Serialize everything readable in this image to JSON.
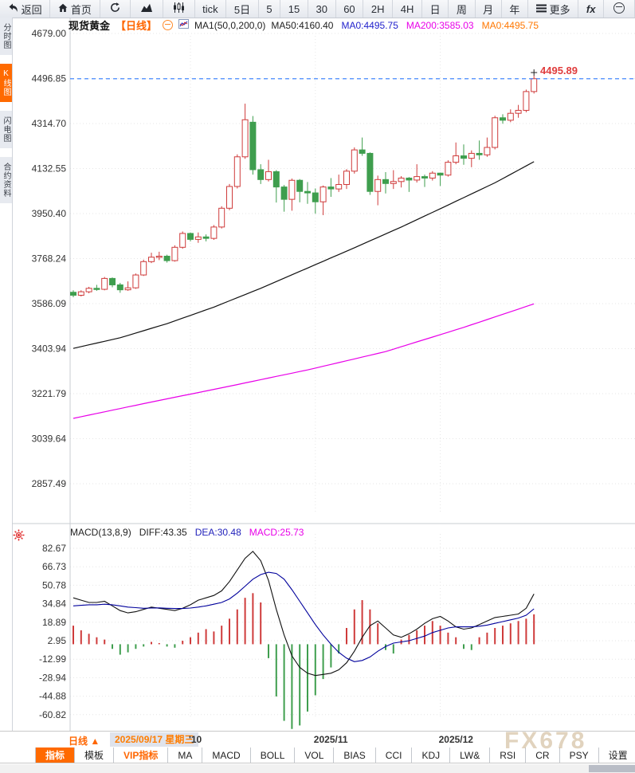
{
  "toolbar": {
    "buttons": [
      {
        "name": "back-button",
        "icon": "back",
        "label": "返回"
      },
      {
        "name": "home-button",
        "icon": "home",
        "label": "首页"
      },
      {
        "name": "refresh-button",
        "icon": "refresh"
      },
      {
        "name": "line-chart-button",
        "icon": "linechart"
      },
      {
        "name": "candlestick-button",
        "icon": "candles"
      },
      {
        "name": "interval-tick-button",
        "label": "tick"
      },
      {
        "name": "interval-5d-button",
        "label": "5日"
      },
      {
        "name": "interval-5-button",
        "label": "5"
      },
      {
        "name": "interval-15-button",
        "label": "15"
      },
      {
        "name": "interval-30-button",
        "label": "30"
      },
      {
        "name": "interval-60-button",
        "label": "60"
      },
      {
        "name": "interval-2h-button",
        "label": "2H"
      },
      {
        "name": "interval-4h-button",
        "label": "4H"
      },
      {
        "name": "interval-day-button",
        "label": "日"
      },
      {
        "name": "interval-week-button",
        "label": "周"
      },
      {
        "name": "interval-month-button",
        "label": "月"
      },
      {
        "name": "interval-year-button",
        "label": "年"
      },
      {
        "name": "more-button",
        "icon": "menu",
        "label": "更多"
      },
      {
        "name": "fx-button",
        "label": "fx",
        "fx": true
      },
      {
        "name": "zoom-out-button",
        "icon": "circleminus"
      }
    ]
  },
  "sidebar": {
    "items": [
      {
        "label": "分时图",
        "active": false
      },
      {
        "label": "K线图",
        "active": true
      },
      {
        "label": "闪电图",
        "active": false
      },
      {
        "label": "合约资料",
        "active": false
      }
    ]
  },
  "chart_header": {
    "symbol": "现货黄金",
    "period": "【日线】",
    "ma_settings": "MA1(50,0,200,0)",
    "ma_values": [
      {
        "label": "MA50:4160.40",
        "color": "#222222"
      },
      {
        "label": "MA0:4495.75",
        "color": "#2222cc"
      },
      {
        "label": "MA200:3585.03",
        "color": "#e800e8"
      },
      {
        "label": "MA0:4495.75",
        "color": "#ff7700"
      }
    ]
  },
  "price_axis": [
    "4679.00",
    "4496.85",
    "4314.70",
    "4132.55",
    "3950.40",
    "3768.24",
    "3586.09",
    "3403.94",
    "3221.79",
    "3039.64",
    "2857.49"
  ],
  "current_price_label": "4495.89",
  "macd_header": {
    "name": "MACD(13,8,9)",
    "diff": "DIFF:43.35",
    "dea": "DEA:30.48",
    "macd": "MACD:25.73"
  },
  "macd_axis": [
    "82.67",
    "66.73",
    "50.78",
    "34.84",
    "18.89",
    "2.95",
    "-12.99",
    "-28.94",
    "-44.88",
    "-60.82"
  ],
  "x_axis": {
    "period_label": "日线 ▲",
    "highlight_date": "2025/09/17 星期三"
  },
  "tabs": [
    {
      "label": "指标",
      "style": "active"
    },
    {
      "label": "模板",
      "style": ""
    },
    {
      "label": "VIP指标",
      "style": "vip"
    },
    {
      "label": "MA",
      "style": ""
    },
    {
      "label": "MACD",
      "style": ""
    },
    {
      "label": "BOLL",
      "style": ""
    },
    {
      "label": "VOL",
      "style": ""
    },
    {
      "label": "BIAS",
      "style": ""
    },
    {
      "label": "CCI",
      "style": ""
    },
    {
      "label": "KDJ",
      "style": ""
    },
    {
      "label": "LW&",
      "style": ""
    },
    {
      "label": "RSI",
      "style": ""
    },
    {
      "label": "CR",
      "style": ""
    },
    {
      "label": "PSY",
      "style": ""
    },
    {
      "label": "设置",
      "style": ""
    }
  ],
  "watermark": "FX678",
  "colors": {
    "accent_orange": "#ff6600",
    "up_red": "#cf3b3b",
    "down_green": "#3f9e4e",
    "ma50_black": "#111111",
    "ma200_magenta": "#e800e8",
    "dea_blue": "#00009c",
    "price_line_blue": "#2e7bff",
    "price_label_red": "#e03c3c",
    "grid_gray": "#e6e6e6"
  },
  "chart_data": {
    "type": "candlestick",
    "title": "现货黄金 日线",
    "ylim": [
      2857.49,
      4679.0
    ],
    "current_price": 4495.89,
    "x_ticks": [
      {
        "label": "'10",
        "index": 15
      },
      {
        "label": "2025/11",
        "index": 31
      },
      {
        "label": "2025/12",
        "index": 47
      }
    ],
    "candles": [
      [
        3632,
        3620,
        3640,
        3612
      ],
      [
        3620,
        3634,
        3640,
        3615
      ],
      [
        3634,
        3648,
        3654,
        3628
      ],
      [
        3648,
        3644,
        3662,
        3638
      ],
      [
        3644,
        3688,
        3694,
        3640
      ],
      [
        3688,
        3662,
        3692,
        3652
      ],
      [
        3662,
        3642,
        3670,
        3630
      ],
      [
        3642,
        3650,
        3676,
        3638
      ],
      [
        3650,
        3702,
        3708,
        3646
      ],
      [
        3702,
        3756,
        3764,
        3698
      ],
      [
        3756,
        3774,
        3792,
        3750
      ],
      [
        3774,
        3778,
        3796,
        3762
      ],
      [
        3778,
        3760,
        3784,
        3752
      ],
      [
        3760,
        3814,
        3822,
        3756
      ],
      [
        3814,
        3870,
        3878,
        3808
      ],
      [
        3870,
        3846,
        3874,
        3838
      ],
      [
        3846,
        3856,
        3874,
        3832
      ],
      [
        3856,
        3850,
        3866,
        3838
      ],
      [
        3850,
        3896,
        3904,
        3844
      ],
      [
        3896,
        3972,
        3980,
        3890
      ],
      [
        3972,
        4060,
        4070,
        3964
      ],
      [
        4060,
        4180,
        4190,
        4052
      ],
      [
        4180,
        4330,
        4395,
        4172
      ],
      [
        4320,
        4128,
        4345,
        4108
      ],
      [
        4128,
        4088,
        4150,
        4070
      ],
      [
        4088,
        4120,
        4168,
        4080
      ],
      [
        4120,
        4058,
        4126,
        3995
      ],
      [
        4058,
        4008,
        4066,
        3958
      ],
      [
        4008,
        4085,
        4092,
        3962
      ],
      [
        4085,
        4040,
        4090,
        3996
      ],
      [
        4040,
        4034,
        4078,
        3990
      ],
      [
        4034,
        3998,
        4052,
        3950
      ],
      [
        3998,
        4058,
        4064,
        3944
      ],
      [
        4058,
        4050,
        4094,
        4018
      ],
      [
        4050,
        4068,
        4108,
        4038
      ],
      [
        4068,
        4122,
        4130,
        4050
      ],
      [
        4122,
        4208,
        4218,
        4112
      ],
      [
        4208,
        4194,
        4258,
        4184
      ],
      [
        4194,
        4040,
        4198,
        4026
      ],
      [
        4040,
        4088,
        4104,
        3984
      ],
      [
        4088,
        4072,
        4118,
        4032
      ],
      [
        4072,
        4080,
        4126,
        4050
      ],
      [
        4080,
        4094,
        4102,
        4056
      ],
      [
        4094,
        4086,
        4098,
        4038
      ],
      [
        4086,
        4100,
        4150,
        4076
      ],
      [
        4100,
        4094,
        4108,
        4058
      ],
      [
        4094,
        4114,
        4122,
        4084
      ],
      [
        4114,
        4106,
        4116,
        4062
      ],
      [
        4106,
        4158,
        4166,
        4100
      ],
      [
        4158,
        4184,
        4238,
        4150
      ],
      [
        4184,
        4174,
        4230,
        4148
      ],
      [
        4174,
        4194,
        4206,
        4138
      ],
      [
        4194,
        4188,
        4246,
        4168
      ],
      [
        4188,
        4218,
        4258,
        4180
      ],
      [
        4218,
        4338,
        4346,
        4210
      ],
      [
        4338,
        4328,
        4352,
        4314
      ],
      [
        4328,
        4356,
        4372,
        4320
      ],
      [
        4356,
        4368,
        4390,
        4338
      ],
      [
        4368,
        4444,
        4452,
        4360
      ],
      [
        4444,
        4495.89,
        4508,
        4436
      ]
    ],
    "ma50_anchors": [
      [
        0,
        3405
      ],
      [
        6,
        3448
      ],
      [
        12,
        3505
      ],
      [
        18,
        3572
      ],
      [
        24,
        3648
      ],
      [
        30,
        3730
      ],
      [
        36,
        3812
      ],
      [
        42,
        3896
      ],
      [
        48,
        3985
      ],
      [
        54,
        4075
      ],
      [
        59,
        4160.4
      ]
    ],
    "ma200_anchors": [
      [
        0,
        3122
      ],
      [
        10,
        3188
      ],
      [
        20,
        3252
      ],
      [
        30,
        3318
      ],
      [
        40,
        3392
      ],
      [
        50,
        3490
      ],
      [
        59,
        3585.03
      ]
    ],
    "macd": {
      "ylim": [
        -60.82,
        82.67
      ],
      "hist": [
        16,
        12,
        9,
        6,
        4,
        -4,
        -9,
        -7,
        -4,
        -2,
        2,
        1,
        -2,
        -3,
        3,
        6,
        10,
        13,
        11,
        16,
        22,
        30,
        40,
        44,
        36,
        -12,
        -45,
        -66,
        -73,
        -70,
        -58,
        -44,
        -30,
        -20,
        -8,
        14,
        30,
        38,
        30,
        18,
        -5,
        -8,
        4,
        8,
        12,
        16,
        20,
        16,
        10,
        6,
        -4,
        -5,
        6,
        10,
        14,
        16,
        18,
        20,
        22,
        25.73
      ],
      "diff": [
        40,
        38,
        36,
        36,
        37,
        33,
        29,
        27,
        28,
        30,
        32,
        31,
        30,
        29,
        31,
        34,
        38,
        40,
        42,
        46,
        54,
        64,
        74,
        80,
        72,
        55,
        30,
        8,
        -10,
        -20,
        -25,
        -27,
        -26,
        -25,
        -22,
        -16,
        -6,
        6,
        16,
        20,
        14,
        8,
        6,
        9,
        13,
        18,
        22,
        24,
        20,
        15,
        13,
        14,
        17,
        20,
        23,
        24,
        25,
        26,
        31,
        43.35
      ],
      "dea": [
        33,
        33.5,
        34,
        34,
        34.5,
        34,
        33,
        32,
        31.5,
        31,
        31.2,
        31.3,
        31,
        30.8,
        30.8,
        31.2,
        32,
        33,
        34.5,
        36,
        39,
        44,
        50,
        56,
        60,
        62,
        61,
        56,
        47,
        37,
        27,
        17,
        8,
        0,
        -7,
        -12,
        -15,
        -14,
        -11,
        -6,
        -2,
        1,
        2,
        3,
        5,
        7,
        10,
        12,
        14,
        15,
        15,
        15,
        15.5,
        16.5,
        18,
        19.5,
        21,
        22.5,
        25,
        30.48
      ]
    }
  }
}
